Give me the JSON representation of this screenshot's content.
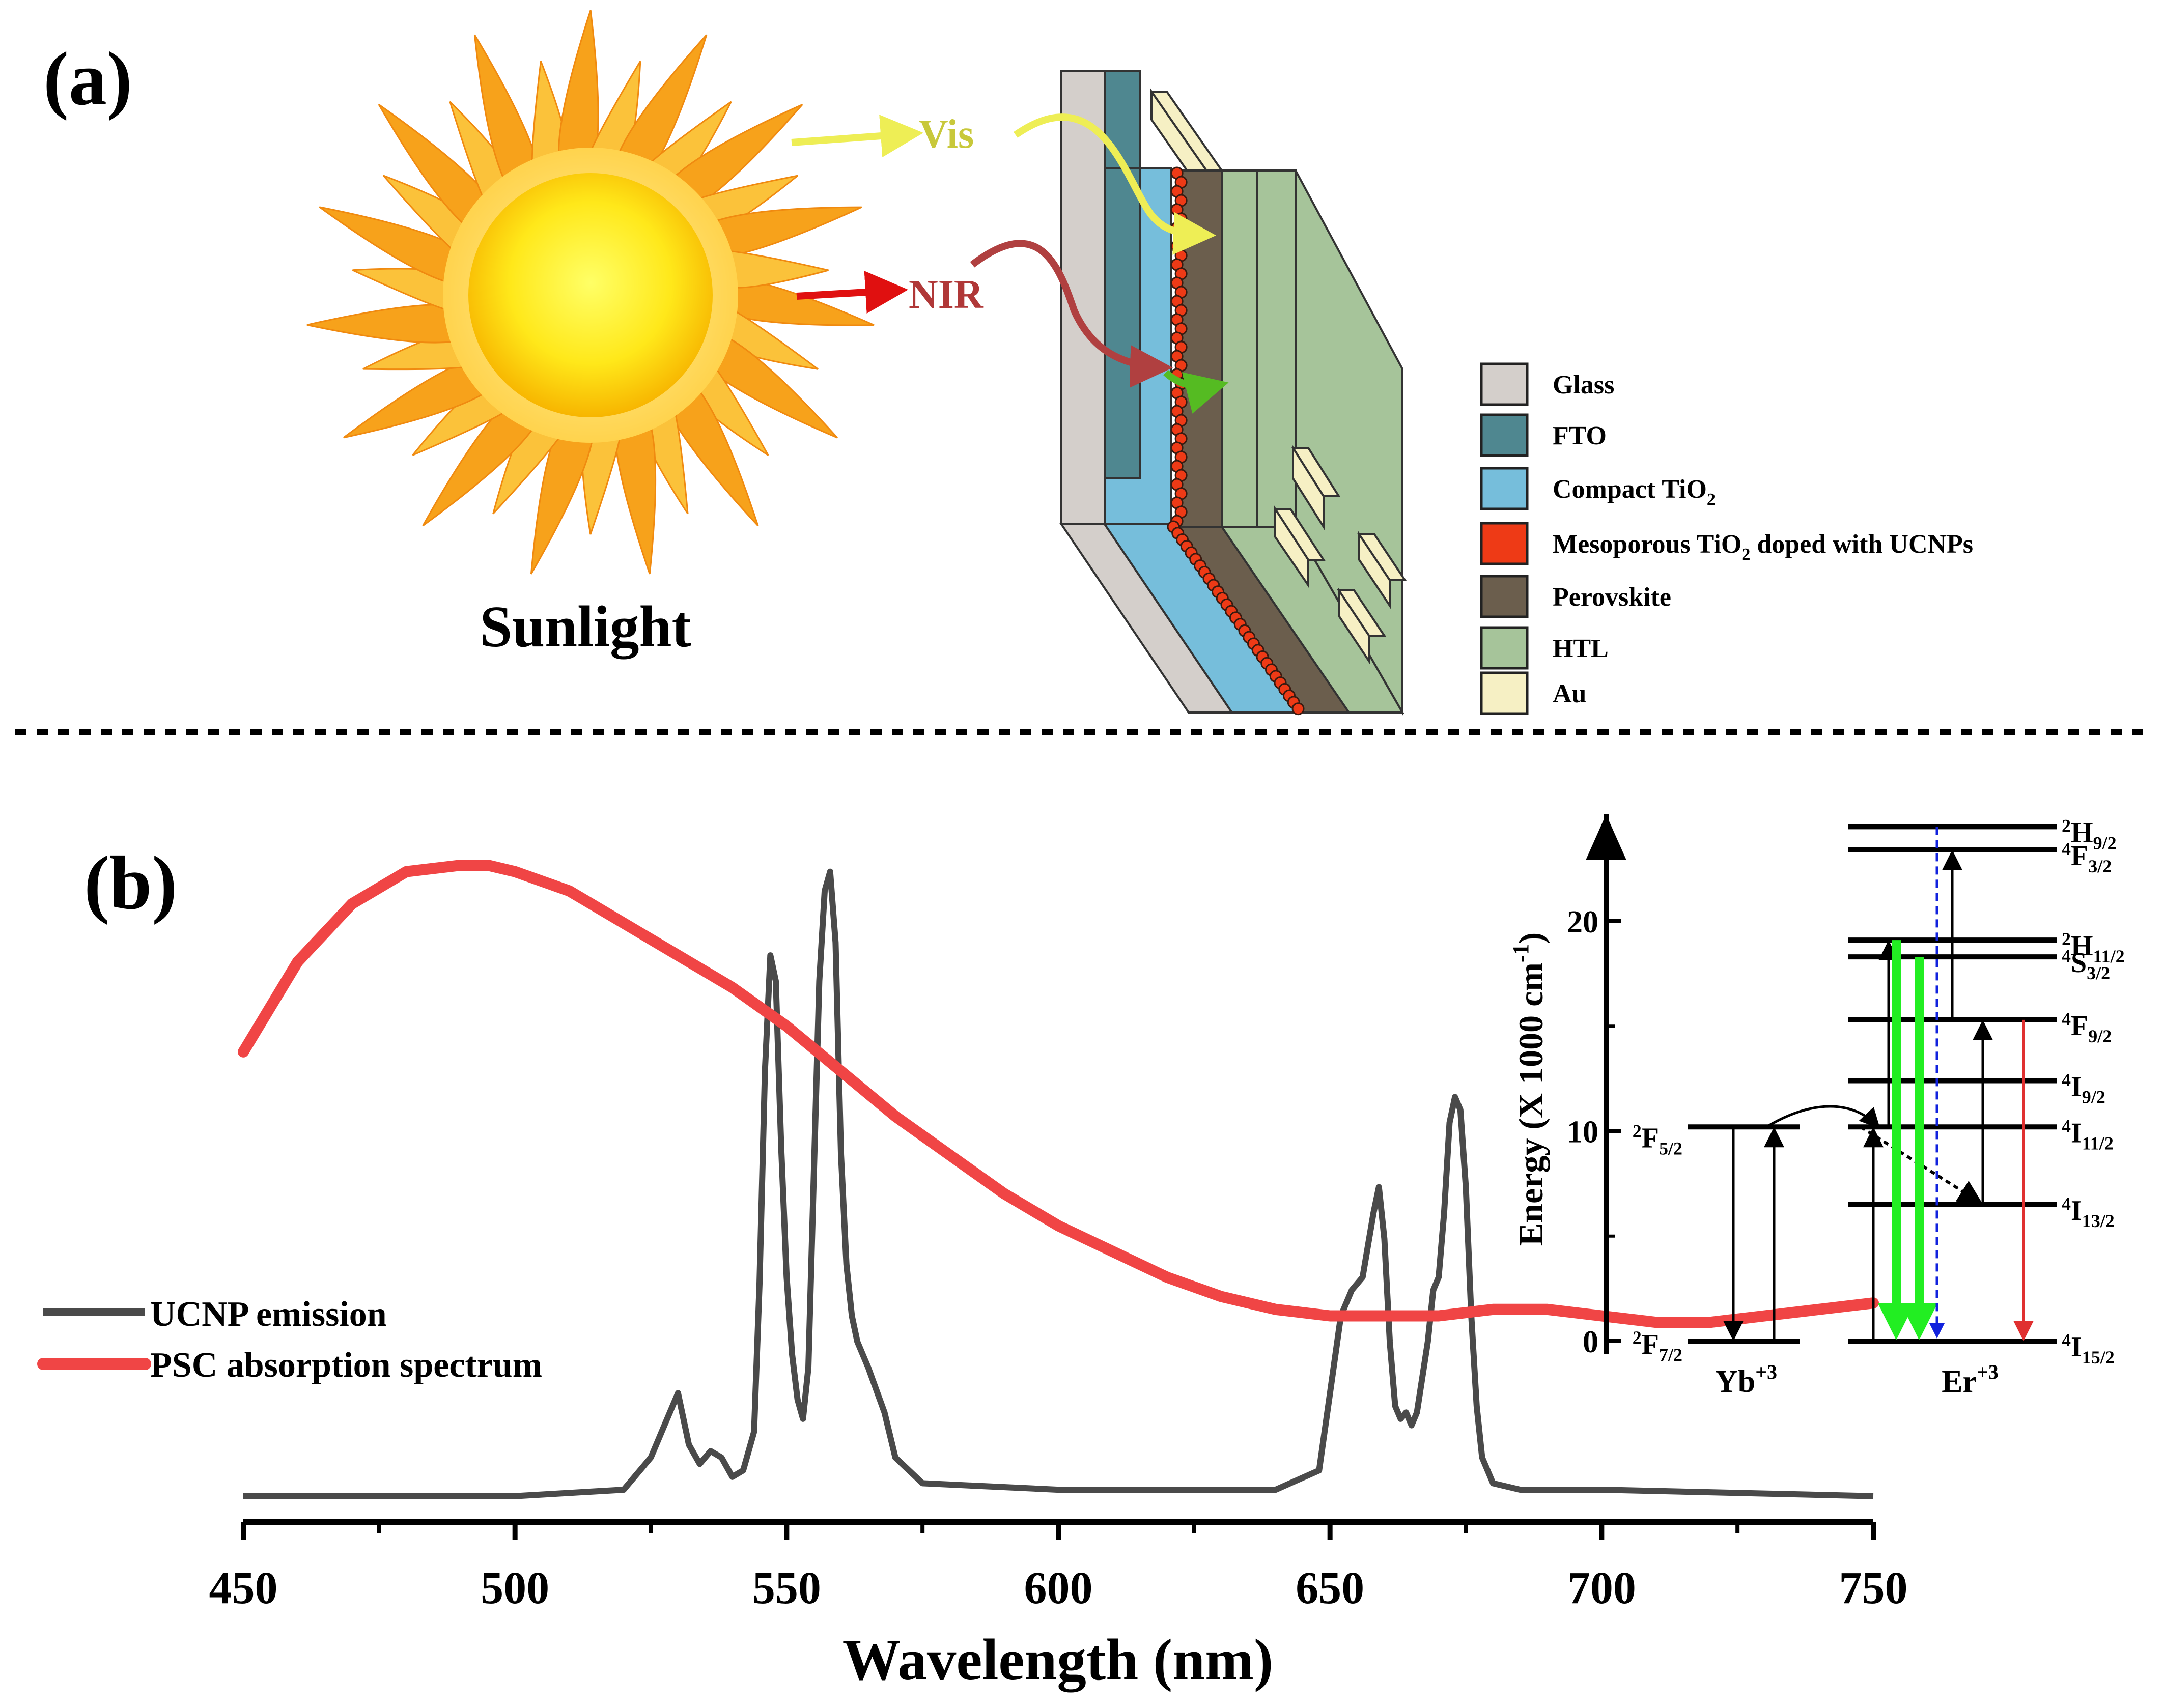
{
  "panel_a": {
    "label": "(a)",
    "sun_label": "Sunlight",
    "vis_label": "Vis",
    "nir_label": "NIR",
    "legend": [
      {
        "label": "Glass",
        "color": "#d4cfcb"
      },
      {
        "label": "FTO",
        "color": "#4f8790"
      },
      {
        "label": "Compact TiO",
        "sub": "2",
        "color": "#76bedb"
      },
      {
        "label": "Mesoporous TiO",
        "sub": "2",
        "tail": " doped with UCNPs",
        "color": "#ee3a16"
      },
      {
        "label": "Perovskite",
        "color": "#6b5e4d"
      },
      {
        "label": "HTL",
        "color": "#a6c49a"
      },
      {
        "label": "Au",
        "color": "#f6f0c4"
      }
    ]
  },
  "panel_b": {
    "label": "(b)",
    "legend": [
      {
        "label": "UCNP emission",
        "color": "#4a4a4a"
      },
      {
        "label": "PSC absorption spectrum",
        "color": "#f04545"
      }
    ]
  },
  "chart_data": {
    "type": "line",
    "title": "",
    "xlabel": "Wavelength (nm)",
    "ylabel": "",
    "xlim": [
      450,
      750
    ],
    "ylim": [
      0,
      1
    ],
    "xticks": [
      450,
      500,
      550,
      600,
      650,
      700,
      750
    ],
    "series": [
      {
        "name": "UCNP emission",
        "color": "#4a4a4a",
        "x": [
          450,
          500,
          520,
          525,
          528,
          530,
          532,
          534,
          536,
          538,
          540,
          542,
          544,
          545,
          546,
          547,
          548,
          549,
          550,
          551,
          552,
          553,
          554,
          555,
          556,
          557,
          558,
          559,
          560,
          561,
          562,
          563,
          565,
          568,
          570,
          575,
          600,
          640,
          648,
          650,
          652,
          654,
          656,
          658,
          659,
          660,
          661,
          662,
          663,
          664,
          665,
          666,
          668,
          669,
          670,
          671,
          672,
          673,
          674,
          675,
          676,
          677,
          678,
          680,
          685,
          700,
          750
        ],
        "values": [
          0.02,
          0.02,
          0.03,
          0.08,
          0.14,
          0.18,
          0.1,
          0.07,
          0.09,
          0.08,
          0.05,
          0.06,
          0.12,
          0.35,
          0.68,
          0.86,
          0.82,
          0.56,
          0.36,
          0.24,
          0.17,
          0.14,
          0.22,
          0.52,
          0.82,
          0.96,
          0.99,
          0.88,
          0.55,
          0.38,
          0.3,
          0.26,
          0.22,
          0.15,
          0.08,
          0.04,
          0.03,
          0.03,
          0.06,
          0.18,
          0.3,
          0.34,
          0.36,
          0.46,
          0.5,
          0.42,
          0.26,
          0.16,
          0.14,
          0.15,
          0.13,
          0.15,
          0.26,
          0.34,
          0.36,
          0.46,
          0.6,
          0.64,
          0.62,
          0.5,
          0.3,
          0.16,
          0.08,
          0.04,
          0.03,
          0.03,
          0.02
        ]
      },
      {
        "name": "PSC absorption spectrum",
        "color": "#f04545",
        "x": [
          450,
          460,
          470,
          480,
          490,
          495,
          500,
          510,
          520,
          530,
          540,
          550,
          560,
          570,
          580,
          590,
          600,
          610,
          620,
          630,
          640,
          650,
          660,
          670,
          680,
          690,
          700,
          710,
          720,
          730,
          740,
          750
        ],
        "values": [
          0.71,
          0.85,
          0.94,
          0.99,
          1.0,
          1.0,
          0.99,
          0.96,
          0.91,
          0.86,
          0.81,
          0.75,
          0.68,
          0.61,
          0.55,
          0.49,
          0.44,
          0.4,
          0.36,
          0.33,
          0.31,
          0.3,
          0.3,
          0.3,
          0.31,
          0.31,
          0.3,
          0.29,
          0.29,
          0.3,
          0.31,
          0.32
        ]
      }
    ]
  },
  "inset": {
    "ylabel_main": "Energy (X 1000 cm",
    "ylabel_sup": "-1",
    "ylabel_close": ")",
    "yticks": [
      {
        "value": 0,
        "label": "0"
      },
      {
        "value": 10,
        "label": "10"
      },
      {
        "value": 20,
        "label": "20"
      }
    ],
    "yb_label": "Yb",
    "yb_sup": "+3",
    "er_label": "Er",
    "er_sup": "+3",
    "yb_levels": [
      {
        "energy": 10.2,
        "pre": "2",
        "main": "F",
        "sub": "5/2"
      },
      {
        "energy": 0,
        "pre": "2",
        "main": "F",
        "sub": "7/2"
      }
    ],
    "er_levels": [
      {
        "energy": 24.5,
        "pre": "2",
        "main": "H",
        "sub": "9/2"
      },
      {
        "energy": 23.4,
        "pre": "4",
        "main": "F",
        "sub": "3/2"
      },
      {
        "energy": 19.1,
        "pre": "2",
        "main": "H",
        "sub": "11/2"
      },
      {
        "energy": 18.3,
        "pre": "4",
        "main": "S",
        "sub": "3/2"
      },
      {
        "energy": 15.3,
        "pre": "4",
        "main": "F",
        "sub": "9/2"
      },
      {
        "energy": 12.4,
        "pre": "4",
        "main": "I",
        "sub": "9/2"
      },
      {
        "energy": 10.2,
        "pre": "4",
        "main": "I",
        "sub": "11/2"
      },
      {
        "energy": 6.5,
        "pre": "4",
        "main": "I",
        "sub": "13/2"
      },
      {
        "energy": 0,
        "pre": "4",
        "main": "I",
        "sub": "15/2"
      }
    ]
  }
}
